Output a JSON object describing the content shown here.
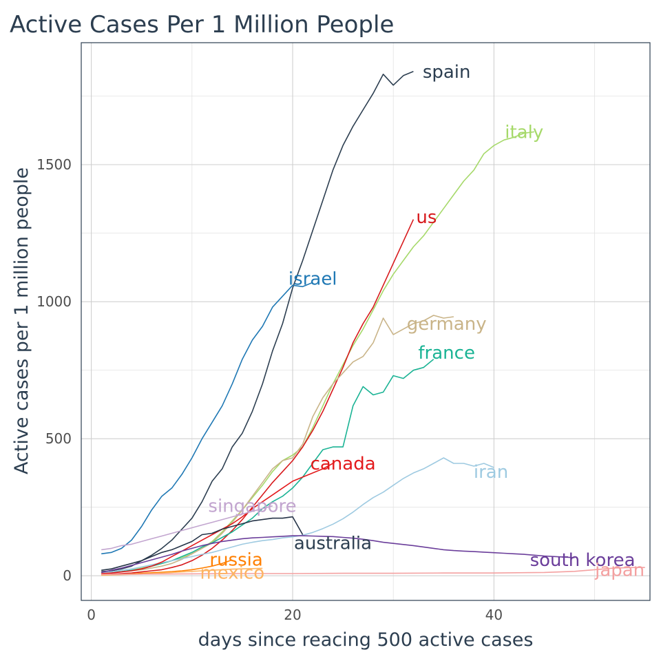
{
  "chart_data": {
    "type": "line",
    "title": "Active Cases Per 1 Million People",
    "xlabel": "days since reacing 500 active cases",
    "ylabel": "Active cases per 1 million people",
    "xlim": [
      -1,
      55.5
    ],
    "ylim": [
      -90,
      1945
    ],
    "x_ticks": [
      0,
      20,
      40
    ],
    "y_ticks": [
      0,
      500,
      1000,
      1500
    ],
    "grid": true,
    "legend": "none (direct labels)",
    "series": [
      {
        "name": "spain",
        "color": "#2c3e50",
        "x": [
          1,
          2,
          3,
          4,
          5,
          6,
          7,
          8,
          9,
          10,
          11,
          12,
          13,
          14,
          15,
          16,
          17,
          18,
          19,
          20,
          21,
          22,
          23,
          24,
          25,
          26,
          27,
          28,
          29,
          30,
          31,
          32
        ],
        "y": [
          15,
          18,
          25,
          35,
          55,
          75,
          100,
          130,
          170,
          210,
          270,
          345,
          390,
          470,
          520,
          600,
          700,
          820,
          920,
          1050,
          1150,
          1260,
          1370,
          1480,
          1570,
          1640,
          1700,
          1760,
          1830,
          1790,
          1825,
          1840
        ]
      },
      {
        "name": "italy",
        "color": "#a6d96a",
        "x": [
          1,
          2,
          3,
          4,
          5,
          6,
          7,
          8,
          9,
          10,
          11,
          12,
          13,
          14,
          15,
          16,
          17,
          18,
          19,
          20,
          21,
          22,
          23,
          24,
          25,
          26,
          27,
          28,
          29,
          30,
          31,
          32,
          33,
          34,
          35,
          36,
          37,
          38,
          39,
          40,
          41,
          42,
          43,
          44
        ],
        "y": [
          10,
          12,
          15,
          20,
          28,
          35,
          45,
          55,
          65,
          80,
          100,
          125,
          160,
          200,
          240,
          285,
          330,
          380,
          420,
          440,
          470,
          540,
          620,
          700,
          770,
          840,
          900,
          970,
          1040,
          1100,
          1150,
          1200,
          1240,
          1290,
          1340,
          1390,
          1440,
          1480,
          1540,
          1570,
          1590,
          1600,
          1615,
          1620
        ]
      },
      {
        "name": "us",
        "color": "#d7191c",
        "x": [
          1,
          2,
          3,
          4,
          5,
          6,
          7,
          8,
          9,
          10,
          11,
          12,
          13,
          14,
          15,
          16,
          17,
          18,
          19,
          20,
          21,
          22,
          23,
          24,
          25,
          26,
          27,
          28,
          29,
          30,
          31,
          32
        ],
        "y": [
          5,
          6,
          8,
          10,
          14,
          18,
          22,
          30,
          40,
          55,
          75,
          100,
          130,
          165,
          205,
          250,
          295,
          340,
          380,
          420,
          470,
          530,
          600,
          680,
          760,
          850,
          920,
          980,
          1060,
          1140,
          1220,
          1300
        ]
      },
      {
        "name": "israel",
        "color": "#1f78b4",
        "x": [
          1,
          2,
          3,
          4,
          5,
          6,
          7,
          8,
          9,
          10,
          11,
          12,
          13,
          14,
          15,
          16,
          17,
          18,
          19,
          20,
          21,
          22
        ],
        "y": [
          80,
          85,
          100,
          130,
          180,
          240,
          290,
          320,
          370,
          430,
          500,
          560,
          620,
          700,
          790,
          860,
          910,
          980,
          1020,
          1060,
          1055,
          1070
        ]
      },
      {
        "name": "germany",
        "color": "#c9b488",
        "x": [
          1,
          2,
          3,
          4,
          5,
          6,
          7,
          8,
          9,
          10,
          11,
          12,
          13,
          14,
          15,
          16,
          17,
          18,
          19,
          20,
          21,
          22,
          23,
          24,
          25,
          26,
          27,
          28,
          29,
          30,
          31,
          32,
          33,
          34,
          35,
          36
        ],
        "y": [
          10,
          12,
          15,
          18,
          22,
          28,
          35,
          45,
          60,
          80,
          100,
          120,
          155,
          195,
          240,
          290,
          340,
          390,
          420,
          430,
          480,
          580,
          650,
          700,
          740,
          780,
          800,
          850,
          940,
          880,
          900,
          920,
          930,
          950,
          940,
          945
        ]
      },
      {
        "name": "france",
        "color": "#1ab394",
        "x": [
          1,
          2,
          3,
          4,
          5,
          6,
          7,
          8,
          9,
          10,
          11,
          12,
          13,
          14,
          15,
          16,
          17,
          18,
          19,
          20,
          21,
          22,
          23,
          24,
          25,
          26,
          27,
          28,
          29,
          30,
          31,
          32,
          33,
          34
        ],
        "y": [
          10,
          12,
          15,
          20,
          25,
          35,
          45,
          55,
          70,
          85,
          105,
          120,
          140,
          160,
          185,
          210,
          245,
          270,
          290,
          320,
          360,
          410,
          460,
          470,
          470,
          620,
          690,
          660,
          670,
          730,
          720,
          750,
          760,
          790
        ]
      },
      {
        "name": "iran",
        "color": "#9ecae1",
        "x": [
          1,
          2,
          3,
          4,
          5,
          6,
          7,
          8,
          9,
          10,
          11,
          12,
          13,
          14,
          15,
          16,
          17,
          18,
          19,
          20,
          21,
          22,
          23,
          24,
          25,
          26,
          27,
          28,
          29,
          30,
          31,
          32,
          33,
          34,
          35,
          36,
          37,
          38,
          39,
          40
        ],
        "y": [
          10,
          14,
          20,
          25,
          32,
          40,
          48,
          55,
          62,
          70,
          78,
          85,
          95,
          105,
          115,
          122,
          128,
          132,
          138,
          142,
          148,
          158,
          172,
          188,
          208,
          232,
          260,
          285,
          305,
          330,
          355,
          375,
          390,
          410,
          430,
          410,
          410,
          400,
          410,
          395
        ]
      },
      {
        "name": "canada",
        "color": "#e31a1c",
        "x": [
          1,
          2,
          3,
          4,
          5,
          6,
          7,
          8,
          9,
          10,
          11,
          12,
          13,
          14,
          15,
          16,
          17,
          18,
          19,
          20,
          21,
          22,
          23,
          24
        ],
        "y": [
          8,
          10,
          14,
          18,
          25,
          35,
          50,
          70,
          90,
          110,
          130,
          150,
          170,
          190,
          215,
          245,
          270,
          295,
          320,
          345,
          360,
          375,
          390,
          410
        ]
      },
      {
        "name": "singapore",
        "color": "#c2a5cf",
        "x": [
          1,
          2,
          3,
          4,
          5,
          6,
          7,
          8,
          9,
          10,
          11,
          12,
          13,
          14,
          15,
          16,
          17,
          18
        ],
        "y": [
          95,
          100,
          110,
          115,
          125,
          135,
          145,
          155,
          165,
          175,
          185,
          195,
          205,
          215,
          225,
          235,
          245,
          255
        ]
      },
      {
        "name": "australia",
        "color": "#253347",
        "x": [
          1,
          2,
          3,
          4,
          5,
          6,
          7,
          8,
          9,
          10,
          11,
          12,
          13,
          14,
          15,
          16,
          17,
          18,
          19,
          20,
          21
        ],
        "y": [
          20,
          25,
          35,
          45,
          55,
          70,
          85,
          95,
          110,
          125,
          150,
          155,
          170,
          180,
          190,
          200,
          205,
          210,
          210,
          215,
          150
        ]
      },
      {
        "name": "south korea",
        "color": "#6a3d9a",
        "x": [
          1,
          2,
          3,
          4,
          5,
          6,
          7,
          8,
          9,
          10,
          11,
          12,
          13,
          14,
          15,
          16,
          17,
          18,
          19,
          20,
          21,
          22,
          23,
          24,
          25,
          26,
          27,
          28,
          29,
          30,
          31,
          32,
          33,
          34,
          35,
          36,
          37,
          38,
          39,
          40,
          41,
          42,
          43,
          44,
          45,
          46,
          47,
          48
        ],
        "y": [
          12,
          20,
          28,
          38,
          48,
          58,
          68,
          78,
          90,
          100,
          110,
          118,
          125,
          130,
          135,
          138,
          140,
          142,
          144,
          146,
          146,
          145,
          144,
          143,
          140,
          137,
          133,
          128,
          122,
          118,
          114,
          110,
          105,
          100,
          95,
          92,
          90,
          88,
          86,
          84,
          82,
          80,
          78,
          75,
          72,
          70,
          68,
          66
        ]
      },
      {
        "name": "russia",
        "color": "#ff7f00",
        "x": [
          1,
          2,
          3,
          4,
          5,
          6,
          7,
          8,
          9,
          10,
          11,
          12,
          13,
          14
        ],
        "y": [
          3,
          4,
          5,
          7,
          9,
          11,
          13,
          15,
          18,
          22,
          28,
          35,
          45,
          58
        ]
      },
      {
        "name": "mexico",
        "color": "#fdb462",
        "x": [
          1,
          2,
          3,
          4,
          5,
          6,
          7,
          8,
          9,
          10,
          11,
          12,
          13,
          14,
          15,
          16,
          17
        ],
        "y": [
          2,
          3,
          4,
          5,
          6,
          8,
          10,
          12,
          14,
          16,
          18,
          20,
          22,
          24,
          25,
          26,
          27
        ]
      },
      {
        "name": "japan",
        "color": "#f4a0a0",
        "x": [
          1,
          5,
          10,
          15,
          20,
          25,
          30,
          35,
          40,
          45,
          48,
          50,
          52,
          54,
          55
        ],
        "y": [
          5,
          6,
          7,
          8,
          8,
          9,
          9,
          10,
          10,
          12,
          16,
          22,
          28,
          30,
          30
        ]
      }
    ],
    "labels": [
      {
        "text": "spain",
        "color": "#2c3e50",
        "x": 35.3,
        "y": 1840
      },
      {
        "text": "italy",
        "color": "#a6d96a",
        "x": 43.0,
        "y": 1620
      },
      {
        "text": "us",
        "color": "#d7191c",
        "x": 33.3,
        "y": 1310
      },
      {
        "text": "israel",
        "color": "#1f78b4",
        "x": 22.0,
        "y": 1085
      },
      {
        "text": "germany",
        "color": "#c9b488",
        "x": 35.3,
        "y": 920
      },
      {
        "text": "france",
        "color": "#1ab394",
        "x": 35.3,
        "y": 815
      },
      {
        "text": "iran",
        "color": "#9ecae1",
        "x": 39.7,
        "y": 380
      },
      {
        "text": "canada",
        "color": "#e31a1c",
        "x": 25.0,
        "y": 410
      },
      {
        "text": "singapore",
        "color": "#c2a5cf",
        "x": 16.0,
        "y": 255
      },
      {
        "text": "australia",
        "color": "#2c3e50",
        "x": 24.0,
        "y": 120
      },
      {
        "text": "south korea",
        "color": "#6a3d9a",
        "x": 48.8,
        "y": 58
      },
      {
        "text": "russia",
        "color": "#ff7f00",
        "x": 14.4,
        "y": 60
      },
      {
        "text": "mexico",
        "color": "#fdb462",
        "x": 14.0,
        "y": 12
      },
      {
        "text": "japan",
        "color": "#f4a0a0",
        "x": 52.5,
        "y": 22
      }
    ]
  }
}
